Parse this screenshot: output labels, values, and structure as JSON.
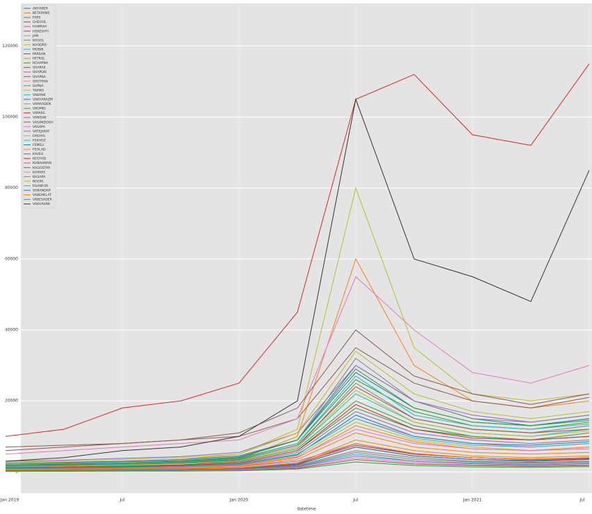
{
  "chart_data": {
    "type": "line",
    "xlabel": "datetime",
    "x": [
      "2019-01",
      "2019-04",
      "2019-07",
      "2019-10",
      "2020-01",
      "2020-04",
      "2020-07",
      "2020-10",
      "2021-01",
      "2021-04",
      "2021-07"
    ],
    "xlim": [
      "2019-01",
      "2021-07"
    ],
    "xticks": [
      {
        "value": "2019-01",
        "label": "Jan 2019"
      },
      {
        "value": "2019-07",
        "label": "Jul"
      },
      {
        "value": "2020-01",
        "label": "Jan 2020"
      },
      {
        "value": "2020-07",
        "label": "Jul"
      },
      {
        "value": "2021-01",
        "label": "Jan 2021"
      },
      {
        "value": "2021-07",
        "label": "Jul"
      }
    ],
    "ylim": [
      -6000,
      132000
    ],
    "yticks": [
      0,
      20000,
      40000,
      60000,
      80000,
      100000,
      120000
    ],
    "grid": true,
    "legend": "upper left",
    "series": [
      {
        "name": "AKHABER",
        "color": "#1f77b4",
        "values": [
          2000,
          2200,
          2500,
          3000,
          4000,
          9000,
          30000,
          20000,
          15000,
          13000,
          15000
        ]
      },
      {
        "name": "BETERANS",
        "color": "#ff7f0e",
        "values": [
          1500,
          1800,
          2200,
          2500,
          3500,
          10000,
          60000,
          30000,
          20000,
          18000,
          20000
        ]
      },
      {
        "name": "FARS",
        "color": "#2ca02c",
        "values": [
          1000,
          1200,
          1500,
          1800,
          2500,
          6000,
          18000,
          12000,
          10000,
          9000,
          11000
        ]
      },
      {
        "name": "GHEGOL",
        "color": "#d62728",
        "values": [
          10000,
          12000,
          18000,
          20000,
          25000,
          45000,
          105000,
          112000,
          95000,
          92000,
          115000
        ]
      },
      {
        "name": "HAMRAH",
        "color": "#9467bd",
        "values": [
          800,
          900,
          1000,
          1200,
          1500,
          3000,
          8000,
          5000,
          4000,
          3500,
          4000
        ]
      },
      {
        "name": "HEKESHTI",
        "color": "#8c564b",
        "values": [
          6000,
          7000,
          8000,
          9000,
          10000,
          15000,
          35000,
          25000,
          20000,
          18000,
          21000
        ]
      },
      {
        "name": "JAM",
        "color": "#e377c2",
        "values": [
          5000,
          6000,
          7000,
          8000,
          9000,
          15000,
          55000,
          40000,
          28000,
          25000,
          30000
        ]
      },
      {
        "name": "KHGOL",
        "color": "#7f7f7f",
        "values": [
          1200,
          1400,
          1600,
          2000,
          3000,
          7000,
          25000,
          15000,
          12000,
          11000,
          13000
        ]
      },
      {
        "name": "KHODRO",
        "color": "#bcbd22",
        "values": [
          2000,
          2500,
          3000,
          3500,
          5000,
          12000,
          80000,
          35000,
          22000,
          20000,
          22000
        ]
      },
      {
        "name": "MOBIN",
        "color": "#17becf",
        "values": [
          1500,
          1700,
          2000,
          2400,
          3200,
          7000,
          22000,
          14000,
          11000,
          10000,
          12000
        ]
      },
      {
        "name": "PARSAN",
        "color": "#1f77b4",
        "values": [
          2500,
          2700,
          3000,
          3500,
          4500,
          9000,
          28000,
          18000,
          14000,
          13000,
          15000
        ]
      },
      {
        "name": "PETROL",
        "color": "#ff7f0e",
        "values": [
          600,
          700,
          800,
          900,
          1200,
          2500,
          9000,
          6000,
          4500,
          4000,
          4500
        ]
      },
      {
        "name": "RCHAPNA",
        "color": "#2ca02c",
        "values": [
          1800,
          2000,
          2300,
          2800,
          3800,
          8000,
          26000,
          17000,
          13000,
          12000,
          14000
        ]
      },
      {
        "name": "SHARAK",
        "color": "#d62728",
        "values": [
          400,
          500,
          600,
          700,
          900,
          2000,
          7000,
          4500,
          3500,
          3000,
          3500
        ]
      },
      {
        "name": "SHAPDIS",
        "color": "#9467bd",
        "values": [
          3000,
          3300,
          3800,
          4300,
          5500,
          11000,
          30000,
          20000,
          16000,
          14000,
          16000
        ]
      },
      {
        "name": "SHAPNA",
        "color": "#8c564b",
        "values": [
          7000,
          7500,
          8000,
          9000,
          11000,
          18000,
          40000,
          27000,
          22000,
          19000,
          22000
        ]
      },
      {
        "name": "SHETRAN",
        "color": "#e377c2",
        "values": [
          1000,
          1100,
          1300,
          1600,
          2200,
          5000,
          15000,
          10000,
          8000,
          7000,
          8000
        ]
      },
      {
        "name": "SHPNA",
        "color": "#7f7f7f",
        "values": [
          2200,
          2400,
          2800,
          3200,
          4200,
          9000,
          32000,
          20000,
          15000,
          14000,
          16000
        ]
      },
      {
        "name": "TAPIKO",
        "color": "#bcbd22",
        "values": [
          900,
          1000,
          1200,
          1400,
          1900,
          4500,
          14000,
          9000,
          7000,
          6000,
          7000
        ]
      },
      {
        "name": "VABANK",
        "color": "#17becf",
        "values": [
          300,
          350,
          400,
          450,
          600,
          1500,
          5000,
          3000,
          2500,
          2200,
          2500
        ]
      },
      {
        "name": "VAKHARAZM",
        "color": "#1f77b4",
        "values": [
          500,
          550,
          650,
          750,
          1000,
          2200,
          8000,
          5000,
          4000,
          3500,
          4000
        ]
      },
      {
        "name": "VAMAADEN",
        "color": "#ff7f0e",
        "values": [
          700,
          800,
          1000,
          1200,
          1600,
          4000,
          13000,
          8500,
          6500,
          6000,
          7000
        ]
      },
      {
        "name": "VBOMID",
        "color": "#2ca02c",
        "values": [
          1300,
          1400,
          1700,
          2000,
          2800,
          6500,
          20000,
          13000,
          10000,
          9000,
          10000
        ]
      },
      {
        "name": "VAPARS",
        "color": "#d62728",
        "values": [
          600,
          650,
          750,
          850,
          1100,
          2500,
          7500,
          5000,
          4000,
          3500,
          3800
        ]
      },
      {
        "name": "VANISAK",
        "color": "#9467bd",
        "values": [
          1100,
          1200,
          1400,
          1700,
          2300,
          5500,
          17000,
          11000,
          9000,
          8000,
          9000
        ]
      },
      {
        "name": "VASANDOGH",
        "color": "#8c564b",
        "values": [
          1600,
          1800,
          2100,
          2500,
          3400,
          7500,
          24000,
          15000,
          12000,
          11000,
          12000
        ]
      },
      {
        "name": "VASAPA",
        "color": "#e377c2",
        "values": [
          800,
          900,
          1100,
          1300,
          1800,
          4200,
          12000,
          8000,
          6500,
          6000,
          6500
        ]
      },
      {
        "name": "VATEJARAT",
        "color": "#7f7f7f",
        "values": [
          400,
          450,
          500,
          600,
          800,
          1800,
          6000,
          4000,
          3000,
          2700,
          3000
        ]
      },
      {
        "name": "FAKHAS",
        "color": "#bcbd22",
        "values": [
          1400,
          1600,
          1900,
          2300,
          3100,
          7000,
          23000,
          14000,
          11000,
          10000,
          11500
        ]
      },
      {
        "name": "FEKHOZ",
        "color": "#17becf",
        "values": [
          1700,
          1900,
          2200,
          2700,
          3600,
          8000,
          27000,
          16000,
          13000,
          12000,
          13500
        ]
      },
      {
        "name": "FEMELI",
        "color": "#1f77b4",
        "values": [
          900,
          1000,
          1200,
          1500,
          2000,
          4800,
          16000,
          10000,
          8000,
          7500,
          8500
        ]
      },
      {
        "name": "FEOLAD",
        "color": "#ff7f0e",
        "values": [
          700,
          800,
          950,
          1100,
          1500,
          3500,
          11000,
          7000,
          5500,
          5000,
          5500
        ]
      },
      {
        "name": "KAVEH",
        "color": "#2ca02c",
        "values": [
          1900,
          2100,
          2500,
          3000,
          4000,
          9000,
          29000,
          18000,
          14000,
          13000,
          14500
        ]
      },
      {
        "name": "KECHAD",
        "color": "#d62728",
        "values": [
          1200,
          1300,
          1500,
          1800,
          2500,
          6000,
          19000,
          12000,
          9500,
          9000,
          10000
        ]
      },
      {
        "name": "KHBAHMAN",
        "color": "#9467bd",
        "values": [
          300,
          320,
          380,
          450,
          600,
          1400,
          4500,
          3000,
          2300,
          2000,
          2300
        ]
      },
      {
        "name": "KHGOSTAR",
        "color": "#8c564b",
        "values": [
          200,
          220,
          260,
          300,
          400,
          1000,
          3500,
          2200,
          1800,
          1600,
          1800
        ]
      },
      {
        "name": "KHPARS",
        "color": "#e377c2",
        "values": [
          250,
          280,
          320,
          380,
          500,
          1200,
          4000,
          2600,
          2000,
          1800,
          2000
        ]
      },
      {
        "name": "KHSAPA",
        "color": "#7f7f7f",
        "values": [
          350,
          380,
          450,
          520,
          700,
          1600,
          5500,
          3500,
          2800,
          2500,
          2800
        ]
      },
      {
        "name": "NOORI",
        "color": "#bcbd22",
        "values": [
          2800,
          3000,
          3500,
          4000,
          5000,
          11000,
          34000,
          22000,
          17000,
          15000,
          17000
        ]
      },
      {
        "name": "RSANFOR",
        "color": "#17becf",
        "values": [
          1000,
          1100,
          1300,
          1500,
          2100,
          5000,
          15000,
          9500,
          7500,
          7000,
          8000
        ]
      },
      {
        "name": "SHBANDAR",
        "color": "#1f77b4",
        "values": [
          450,
          500,
          600,
          700,
          900,
          2100,
          7000,
          4500,
          3500,
          3200,
          3600
        ]
      },
      {
        "name": "VABEMELAT",
        "color": "#ff7f0e",
        "values": [
          550,
          600,
          700,
          800,
          1050,
          2400,
          8000,
          5200,
          4000,
          3600,
          4000
        ]
      },
      {
        "name": "VABESADER",
        "color": "#2ca02c",
        "values": [
          150,
          170,
          200,
          230,
          300,
          800,
          2800,
          1800,
          1400,
          1300,
          1500
        ]
      },
      {
        "name": "VAKHAVAN",
        "color": "#333333",
        "values": [
          3000,
          4000,
          6000,
          7000,
          10000,
          20000,
          105000,
          60000,
          55000,
          48000,
          85000
        ]
      }
    ]
  }
}
